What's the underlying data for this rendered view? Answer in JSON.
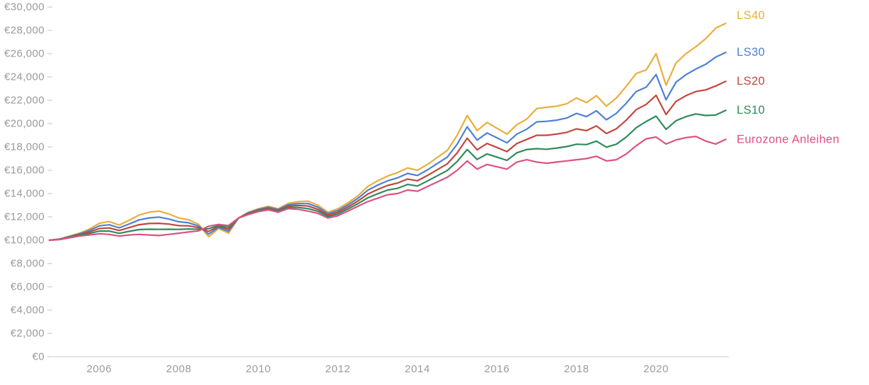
{
  "background": "#FFFFFF",
  "axes": {
    "label_color": "#9A9A9A",
    "tick_color": "#D8D8D8",
    "axis_line_color": "#E4E4E4"
  },
  "chart_data": {
    "type": "line",
    "title": "",
    "xlabel": "",
    "ylabel": "",
    "grid": false,
    "legend_position": "right-of-line-ends",
    "currency": "EUR",
    "xlim": [
      2004.75,
      2021.83
    ],
    "ylim": [
      0,
      30000
    ],
    "x_ticks": [
      2006,
      2008,
      2010,
      2012,
      2014,
      2016,
      2018,
      2020
    ],
    "x_tick_labels": [
      "2006",
      "2008",
      "2010",
      "2012",
      "2014",
      "2016",
      "2018",
      "2020"
    ],
    "y_ticks": [
      0,
      2000,
      4000,
      6000,
      8000,
      10000,
      12000,
      14000,
      16000,
      18000,
      20000,
      22000,
      24000,
      26000,
      28000,
      30000
    ],
    "y_tick_labels": [
      "€0",
      "€2,000",
      "€4,000",
      "€6,000",
      "€8,000",
      "€10,000",
      "€12,000",
      "€14,000",
      "€16,000",
      "€18,000",
      "€20,000",
      "€22,000",
      "€24,000",
      "€26,000",
      "€28,000",
      "€30,000"
    ],
    "x": [
      2004.75,
      2005.0,
      2005.25,
      2005.5,
      2005.75,
      2006.0,
      2006.25,
      2006.5,
      2006.75,
      2007.0,
      2007.25,
      2007.5,
      2007.75,
      2008.0,
      2008.25,
      2008.5,
      2008.75,
      2009.0,
      2009.25,
      2009.5,
      2009.75,
      2010.0,
      2010.25,
      2010.5,
      2010.75,
      2011.0,
      2011.25,
      2011.5,
      2011.75,
      2012.0,
      2012.25,
      2012.5,
      2012.75,
      2013.0,
      2013.25,
      2013.5,
      2013.75,
      2014.0,
      2014.25,
      2014.5,
      2014.75,
      2015.0,
      2015.25,
      2015.5,
      2015.75,
      2016.0,
      2016.25,
      2016.5,
      2016.75,
      2017.0,
      2017.25,
      2017.5,
      2017.75,
      2018.0,
      2018.25,
      2018.5,
      2018.75,
      2019.0,
      2019.25,
      2019.5,
      2019.75,
      2020.0,
      2020.25,
      2020.5,
      2020.75,
      2021.0,
      2021.25,
      2021.5,
      2021.75
    ],
    "series": [
      {
        "name": "LS40",
        "color": "#EAAE3C",
        "values": [
          10000,
          10100,
          10350,
          10600,
          10950,
          11450,
          11600,
          11300,
          11700,
          12150,
          12400,
          12500,
          12250,
          11900,
          11750,
          11350,
          10300,
          11000,
          10600,
          11900,
          12400,
          12700,
          12900,
          12700,
          13150,
          13300,
          13350,
          13000,
          12400,
          12700,
          13200,
          13800,
          14600,
          15100,
          15500,
          15800,
          16200,
          16000,
          16500,
          17100,
          17700,
          19000,
          20700,
          19400,
          20100,
          19600,
          19100,
          19900,
          20400,
          21300,
          21400,
          21500,
          21700,
          22200,
          21800,
          22400,
          21500,
          22200,
          23200,
          24300,
          24600,
          26000,
          23300,
          25200,
          26000,
          26600,
          27300,
          28200,
          28600
        ]
      },
      {
        "name": "LS30",
        "color": "#4D80D5",
        "values": [
          10000,
          10090,
          10310,
          10540,
          10830,
          11230,
          11320,
          11060,
          11390,
          11740,
          11910,
          11980,
          11810,
          11580,
          11490,
          11210,
          10530,
          11090,
          10760,
          11900,
          12350,
          12640,
          12830,
          12630,
          13040,
          13140,
          13140,
          12830,
          12280,
          12550,
          13030,
          13580,
          14280,
          14730,
          15100,
          15350,
          15730,
          15550,
          16030,
          16580,
          17130,
          18250,
          19730,
          18580,
          19200,
          18780,
          18350,
          19100,
          19530,
          20150,
          20200,
          20300,
          20480,
          20880,
          20600,
          21100,
          20330,
          20880,
          21750,
          22750,
          23130,
          24210,
          22040,
          23550,
          24200,
          24680,
          25100,
          25710,
          26110
        ]
      },
      {
        "name": "LS20",
        "color": "#C3463E",
        "values": [
          10000,
          10080,
          10280,
          10480,
          10700,
          11000,
          11050,
          10830,
          11080,
          11330,
          11430,
          11450,
          11380,
          11250,
          11230,
          11080,
          10750,
          11180,
          10930,
          11900,
          12300,
          12580,
          12750,
          12550,
          12930,
          12980,
          12930,
          12650,
          12150,
          12400,
          12850,
          13350,
          13950,
          14350,
          14700,
          14900,
          15250,
          15100,
          15550,
          16050,
          16550,
          17500,
          18750,
          17750,
          18300,
          17950,
          17600,
          18300,
          18650,
          19000,
          19000,
          19100,
          19250,
          19550,
          19400,
          19800,
          19150,
          19550,
          20300,
          21200,
          21650,
          22430,
          20780,
          21900,
          22400,
          22750,
          22900,
          23230,
          23630
        ]
      },
      {
        "name": "LS10",
        "color": "#2E8B5C",
        "values": [
          10000,
          10060,
          10240,
          10410,
          10580,
          10780,
          10780,
          10590,
          10760,
          10910,
          10940,
          10930,
          10940,
          10930,
          10960,
          10940,
          10980,
          11260,
          11090,
          11900,
          12250,
          12510,
          12680,
          12480,
          12810,
          12810,
          12710,
          12480,
          12030,
          12250,
          12680,
          13130,
          13630,
          13980,
          14300,
          14450,
          14780,
          14650,
          15080,
          15530,
          15980,
          16750,
          17780,
          16930,
          17400,
          17130,
          16850,
          17500,
          17780,
          17850,
          17800,
          17900,
          18030,
          18230,
          18200,
          18500,
          17980,
          18230,
          18850,
          19650,
          20180,
          20640,
          19510,
          20250,
          20600,
          20830,
          20700,
          20740,
          21140
        ]
      },
      {
        "name": "Eurozone Anleihen",
        "color": "#DE5083",
        "values": [
          10000,
          10050,
          10200,
          10350,
          10450,
          10550,
          10500,
          10350,
          10450,
          10500,
          10450,
          10400,
          10500,
          10600,
          10700,
          10800,
          11200,
          11350,
          11250,
          11900,
          12200,
          12450,
          12600,
          12400,
          12700,
          12650,
          12500,
          12300,
          11900,
          12100,
          12500,
          12900,
          13300,
          13600,
          13900,
          14000,
          14300,
          14200,
          14600,
          15000,
          15400,
          16000,
          16800,
          16100,
          16500,
          16300,
          16100,
          16700,
          16900,
          16700,
          16600,
          16700,
          16800,
          16900,
          17000,
          17200,
          16800,
          16900,
          17400,
          18100,
          18700,
          18850,
          18250,
          18600,
          18800,
          18900,
          18500,
          18250,
          18650
        ]
      }
    ]
  }
}
